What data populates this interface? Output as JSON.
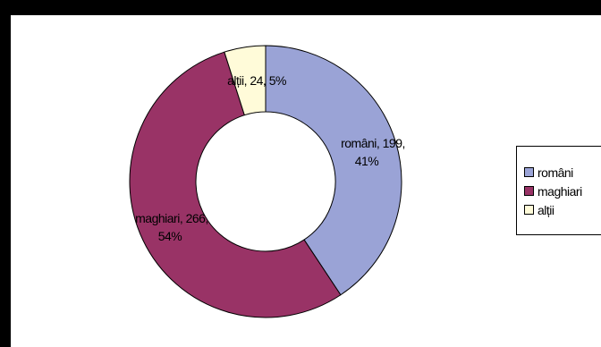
{
  "chart_data": {
    "type": "pie",
    "style": "donut",
    "legend_position": "right",
    "categories": [
      "români",
      "maghiari",
      "alții"
    ],
    "values": [
      199,
      266,
      24
    ],
    "percents": [
      "41%",
      "54%",
      "5%"
    ],
    "data_labels": [
      {
        "line1": "români, 199,",
        "line2": "41%"
      },
      {
        "line1": "maghiari, 266,",
        "line2": "54%"
      },
      {
        "line1": "alții, 24, 5%",
        "line2": ""
      }
    ],
    "colors": [
      "#9aa3d6",
      "#993366",
      "#fffbd9"
    ],
    "legend": [
      "români",
      "maghiari",
      "alții"
    ]
  }
}
